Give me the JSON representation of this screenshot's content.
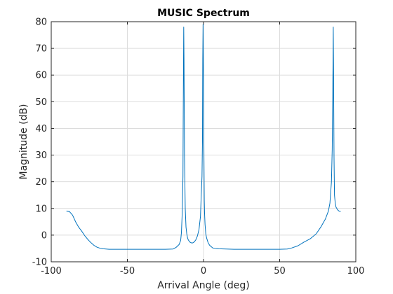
{
  "chart_data": {
    "type": "line",
    "title": "MUSIC Spectrum",
    "xlabel": "Arrival Angle (deg)",
    "ylabel": "Magnitude (dB)",
    "xlim": [
      -100,
      100
    ],
    "ylim": [
      -10,
      80
    ],
    "xticks": [
      -100,
      -50,
      0,
      50,
      100
    ],
    "xtick_labels": [
      "-100",
      "-50",
      "0",
      "50",
      "100"
    ],
    "yticks": [
      -10,
      0,
      10,
      20,
      30,
      40,
      50,
      60,
      70,
      80
    ],
    "ytick_labels": [
      "-10",
      "0",
      "10",
      "20",
      "30",
      "40",
      "50",
      "60",
      "70",
      "80"
    ],
    "grid": true,
    "line_color": "#0072BD",
    "series": [
      {
        "x": [
          -90,
          -88,
          -86,
          -84,
          -82,
          -80,
          -78,
          -76,
          -74,
          -72,
          -70,
          -68,
          -66,
          -64,
          -62,
          -60,
          -55,
          -50,
          -45,
          -40,
          -35,
          -30,
          -25,
          -20,
          -18,
          -16,
          -15,
          -14.5,
          -14,
          -13.5,
          -13.2,
          -13,
          -12.8,
          -12.5,
          -12,
          -11.5,
          -11,
          -10.5,
          -10,
          -9,
          -8,
          -7,
          -6,
          -5,
          -4,
          -3,
          -2,
          -1.5,
          -1,
          -0.7,
          -0.5,
          -0.3,
          0,
          0.3,
          0.5,
          0.7,
          1,
          1.5,
          2,
          3,
          4,
          5,
          6,
          8,
          10,
          15,
          20,
          25,
          30,
          35,
          40,
          45,
          50,
          55,
          58,
          62,
          66,
          70,
          74,
          77,
          80,
          82,
          83,
          84,
          84.5,
          85,
          85.2,
          85.4,
          85.7,
          86,
          86.5,
          87,
          88,
          89,
          90
        ],
        "y": [
          9,
          8.8,
          7.5,
          5,
          3,
          1.5,
          -0.2,
          -1.6,
          -2.8,
          -3.8,
          -4.5,
          -4.9,
          -5.1,
          -5.2,
          -5.3,
          -5.3,
          -5.3,
          -5.3,
          -5.3,
          -5.3,
          -5.3,
          -5.3,
          -5.3,
          -5.2,
          -4.6,
          -3.5,
          -2,
          1,
          8,
          22,
          59,
          78,
          65,
          30,
          10,
          3,
          0.5,
          -1,
          -1.8,
          -2.6,
          -2.9,
          -2.9,
          -2.5,
          -1.7,
          -0.3,
          2,
          7,
          15,
          22,
          35,
          66,
          79,
          57,
          28,
          13,
          8,
          4,
          0.5,
          -1,
          -2.8,
          -3.8,
          -4.3,
          -4.8,
          -5,
          -5.1,
          -5.2,
          -5.3,
          -5.3,
          -5.3,
          -5.3,
          -5.3,
          -5.3,
          -5.3,
          -5.2,
          -4.8,
          -4,
          -2.6,
          -1.4,
          0.5,
          3,
          6,
          9,
          12,
          20,
          32,
          62,
          78,
          60,
          29,
          15,
          12,
          10.5,
          9.5,
          9,
          8.8
        ]
      }
    ]
  }
}
